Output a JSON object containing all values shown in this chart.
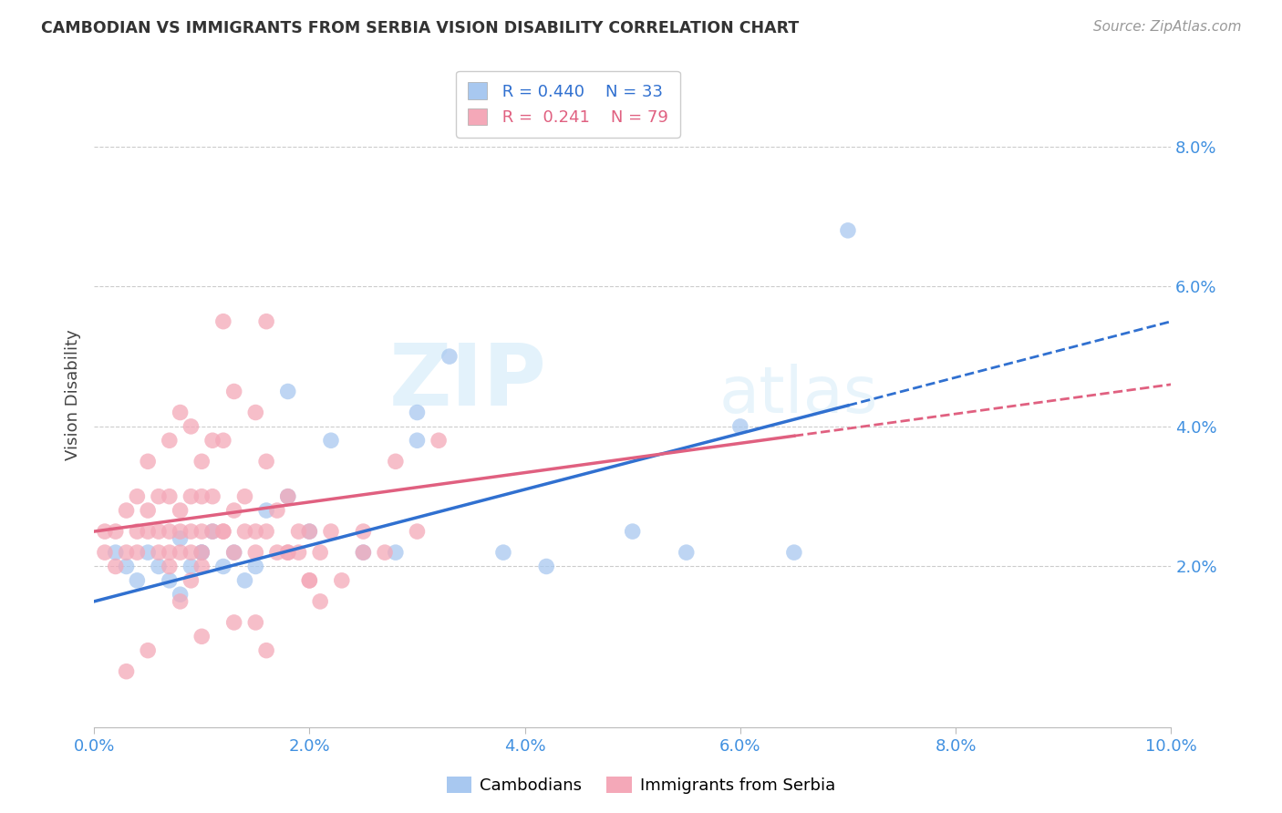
{
  "title": "CAMBODIAN VS IMMIGRANTS FROM SERBIA VISION DISABILITY CORRELATION CHART",
  "source": "Source: ZipAtlas.com",
  "ylabel": "Vision Disability",
  "watermark": "ZIPatlas",
  "xlim": [
    0.0,
    0.1
  ],
  "ylim": [
    -0.003,
    0.092
  ],
  "xticks": [
    0.0,
    0.02,
    0.04,
    0.06,
    0.08,
    0.1
  ],
  "yticks_right": [
    0.02,
    0.04,
    0.06,
    0.08
  ],
  "legend_blue_r": "0.440",
  "legend_blue_n": "33",
  "legend_pink_r": "0.241",
  "legend_pink_n": "79",
  "blue_color": "#a8c8f0",
  "pink_color": "#f4a8b8",
  "blue_line_color": "#3070d0",
  "pink_line_color": "#e06080",
  "tick_color": "#4090e0",
  "background_color": "#ffffff",
  "grid_color": "#cccccc",
  "blue_x": [
    0.002,
    0.003,
    0.004,
    0.005,
    0.006,
    0.007,
    0.008,
    0.008,
    0.009,
    0.01,
    0.011,
    0.012,
    0.013,
    0.014,
    0.015,
    0.016,
    0.018,
    0.02,
    0.022,
    0.025,
    0.028,
    0.03,
    0.033,
    0.038,
    0.042,
    0.05,
    0.055,
    0.06,
    0.065,
    0.07,
    0.03,
    0.018,
    0.01
  ],
  "blue_y": [
    0.022,
    0.02,
    0.018,
    0.022,
    0.02,
    0.018,
    0.016,
    0.024,
    0.02,
    0.022,
    0.025,
    0.02,
    0.022,
    0.018,
    0.02,
    0.028,
    0.03,
    0.025,
    0.038,
    0.022,
    0.022,
    0.042,
    0.05,
    0.022,
    0.02,
    0.025,
    0.022,
    0.04,
    0.022,
    0.068,
    0.038,
    0.045,
    0.022
  ],
  "pink_x": [
    0.001,
    0.001,
    0.002,
    0.002,
    0.003,
    0.003,
    0.004,
    0.004,
    0.004,
    0.005,
    0.005,
    0.005,
    0.006,
    0.006,
    0.006,
    0.007,
    0.007,
    0.007,
    0.007,
    0.008,
    0.008,
    0.008,
    0.008,
    0.009,
    0.009,
    0.009,
    0.009,
    0.01,
    0.01,
    0.01,
    0.01,
    0.01,
    0.011,
    0.011,
    0.011,
    0.012,
    0.012,
    0.012,
    0.013,
    0.013,
    0.013,
    0.014,
    0.014,
    0.015,
    0.015,
    0.015,
    0.016,
    0.016,
    0.016,
    0.017,
    0.017,
    0.018,
    0.018,
    0.019,
    0.019,
    0.02,
    0.02,
    0.021,
    0.022,
    0.023,
    0.025,
    0.027,
    0.028,
    0.03,
    0.032,
    0.025,
    0.015,
    0.012,
    0.02,
    0.018,
    0.003,
    0.005,
    0.008,
    0.01,
    0.013,
    0.016,
    0.021,
    0.009,
    0.007
  ],
  "pink_y": [
    0.022,
    0.025,
    0.02,
    0.025,
    0.022,
    0.028,
    0.025,
    0.03,
    0.022,
    0.025,
    0.028,
    0.035,
    0.025,
    0.03,
    0.022,
    0.025,
    0.03,
    0.038,
    0.022,
    0.025,
    0.028,
    0.042,
    0.022,
    0.025,
    0.03,
    0.04,
    0.022,
    0.025,
    0.03,
    0.035,
    0.022,
    0.02,
    0.025,
    0.03,
    0.038,
    0.025,
    0.038,
    0.055,
    0.022,
    0.028,
    0.045,
    0.025,
    0.03,
    0.025,
    0.042,
    0.022,
    0.025,
    0.035,
    0.055,
    0.022,
    0.028,
    0.022,
    0.03,
    0.022,
    0.025,
    0.018,
    0.025,
    0.022,
    0.025,
    0.018,
    0.025,
    0.022,
    0.035,
    0.025,
    0.038,
    0.022,
    0.012,
    0.025,
    0.018,
    0.022,
    0.005,
    0.008,
    0.015,
    0.01,
    0.012,
    0.008,
    0.015,
    0.018,
    0.02
  ]
}
